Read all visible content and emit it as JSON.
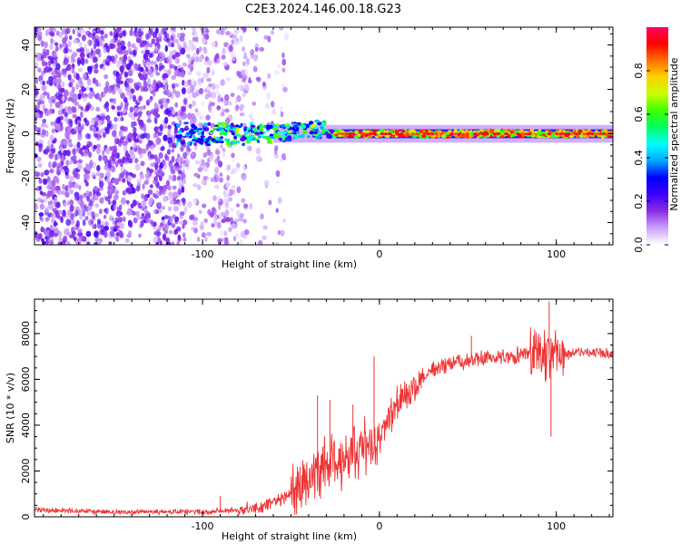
{
  "title": "C2E3.2024.146.00.18.G23",
  "chart_data": [
    {
      "type": "heatmap",
      "name": "spectrogram",
      "xlabel": "Height of straight line (km)",
      "ylabel": "Frequency (Hz)",
      "xlim": [
        -195,
        132
      ],
      "ylim": [
        -50,
        48
      ],
      "xticks": [
        -100,
        0,
        100
      ],
      "xtick_labels": [
        "-100",
        "0",
        "100"
      ],
      "yticks": [
        -40,
        -20,
        0,
        20,
        40
      ],
      "ytick_labels": [
        "-40",
        "-20",
        "0",
        "20",
        "40"
      ],
      "noise_region_x": [
        -195,
        -62
      ],
      "signal_band": {
        "x_start": -115,
        "x_end": 132,
        "center_hz": 0,
        "strong_from_x": -25
      },
      "colorbar": {
        "label": "Normalized spectral amplitude",
        "range": [
          0,
          1
        ],
        "ticks": [
          0.0,
          0.2,
          0.4,
          0.6,
          0.8
        ],
        "tick_labels": [
          "0.0",
          "0.2",
          "0.4",
          "0.6",
          "0.8"
        ],
        "colors": [
          "#ffffff",
          "#c9a0ff",
          "#8a2be2",
          "#3a00ff",
          "#0000ff",
          "#00a8ff",
          "#00ffff",
          "#00ff60",
          "#40ff00",
          "#c8ff00",
          "#ffd000",
          "#ff7000",
          "#ff0000",
          "#ff0060"
        ]
      }
    },
    {
      "type": "line",
      "name": "snr",
      "xlabel": "Height of straight line (km)",
      "ylabel": "SNR (10 * v/v)",
      "xlim": [
        -195,
        132
      ],
      "ylim": [
        0,
        9500
      ],
      "xticks": [
        -100,
        0,
        100
      ],
      "xtick_labels": [
        "-100",
        "0",
        "100"
      ],
      "yticks": [
        0,
        2000,
        4000,
        6000,
        8000
      ],
      "ytick_labels": [
        "0",
        "2000",
        "4000",
        "6000",
        "8000"
      ],
      "color": "#ee3333",
      "envelope": {
        "x": [
          -195,
          -150,
          -100,
          -80,
          -70,
          -60,
          -50,
          -40,
          -30,
          -20,
          -10,
          0,
          10,
          20,
          30,
          40,
          50,
          60,
          70,
          80,
          90,
          100,
          110,
          120,
          132
        ],
        "y": [
          300,
          200,
          220,
          300,
          350,
          600,
          1000,
          1700,
          2200,
          2600,
          3000,
          3600,
          4900,
          5800,
          6400,
          6700,
          6800,
          6900,
          7000,
          7050,
          7100,
          7000,
          7150,
          7200,
          7100
        ]
      },
      "spikes": [
        {
          "x": -35,
          "y": 5300
        },
        {
          "x": -28,
          "y": 5100
        },
        {
          "x": -15,
          "y": 4900
        },
        {
          "x": -3,
          "y": 7000
        },
        {
          "x": 52,
          "y": 7900
        },
        {
          "x": 96,
          "y": 9400
        },
        {
          "x": 97,
          "y": 3500
        },
        {
          "x": -90,
          "y": 900
        }
      ]
    }
  ]
}
